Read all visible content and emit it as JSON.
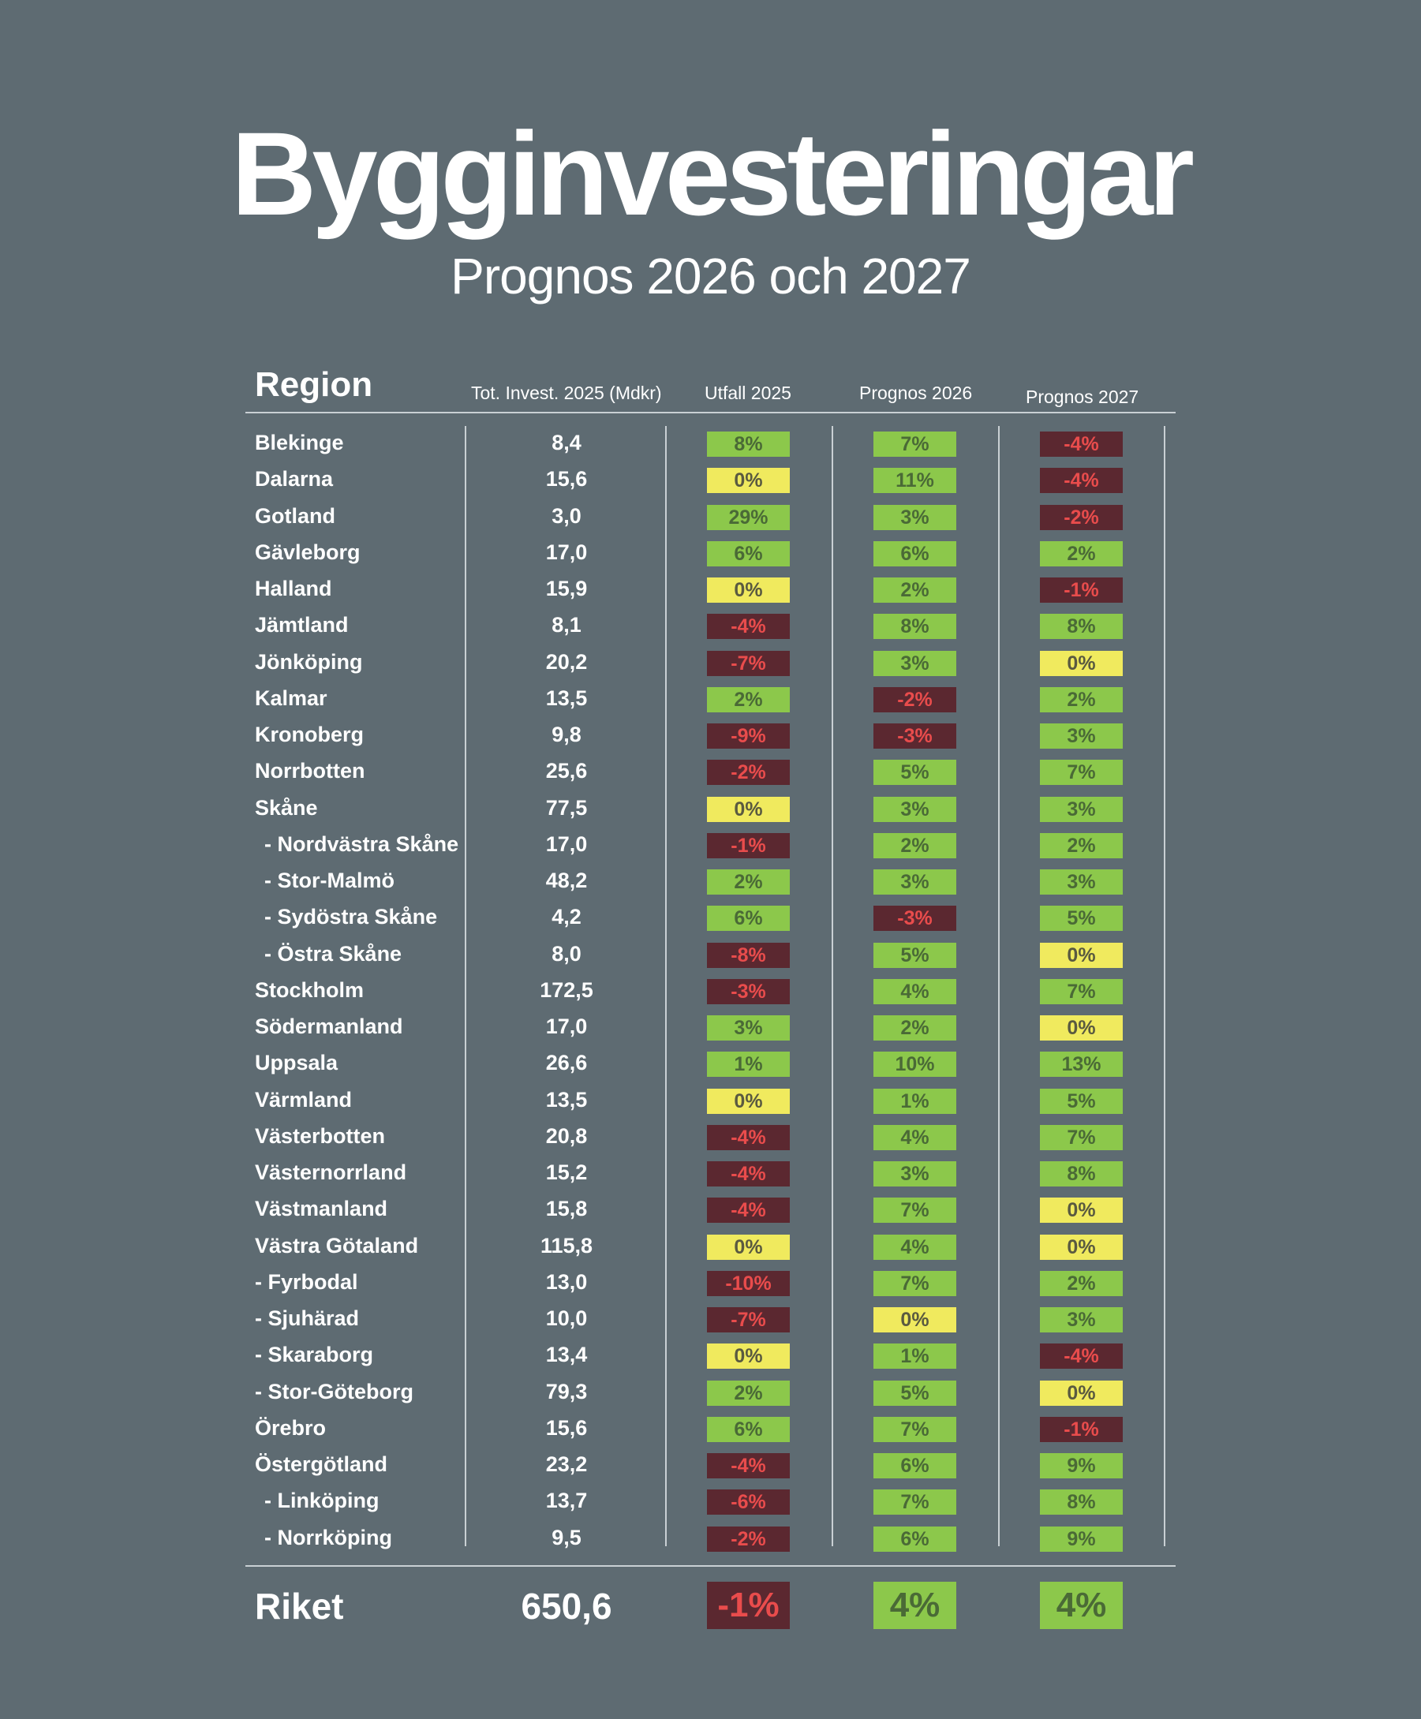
{
  "title": "Bygginvesteringar",
  "subtitle": "Prognos 2026 och 2027",
  "colors": {
    "background": "#5e6b72",
    "positive": "#8cc84b",
    "zero": "#f0ea5e",
    "negative": "#5b2830",
    "negative_text": "#e94c4c"
  },
  "headers": {
    "region": "Region",
    "tot": "Tot. Invest. 2025 (Mdkr)",
    "utfall": "Utfall 2025",
    "p2026": "Prognos 2026",
    "p2027": "Prognos 2027"
  },
  "chart_data": {
    "type": "table",
    "title": "Bygginvesteringar",
    "subtitle": "Prognos 2026 och 2027",
    "columns": [
      "Region",
      "Tot. Invest. 2025 (Mdkr)",
      "Utfall 2025",
      "Prognos 2026",
      "Prognos 2027"
    ],
    "rows": [
      {
        "region": "Blekinge",
        "level": 0,
        "tot": "8,4",
        "utfall": "8%",
        "p2026": "7%",
        "p2027": "-4%"
      },
      {
        "region": "Dalarna",
        "level": 0,
        "tot": "15,6",
        "utfall": "0%",
        "p2026": "11%",
        "p2027": "-4%"
      },
      {
        "region": "Gotland",
        "level": 0,
        "tot": "3,0",
        "utfall": "29%",
        "p2026": "3%",
        "p2027": "-2%"
      },
      {
        "region": "Gävleborg",
        "level": 0,
        "tot": "17,0",
        "utfall": "6%",
        "p2026": "6%",
        "p2027": "2%"
      },
      {
        "region": "Halland",
        "level": 0,
        "tot": "15,9",
        "utfall": "0%",
        "p2026": "2%",
        "p2027": "-1%"
      },
      {
        "region": "Jämtland",
        "level": 0,
        "tot": "8,1",
        "utfall": "-4%",
        "p2026": "8%",
        "p2027": "8%"
      },
      {
        "region": "Jönköping",
        "level": 0,
        "tot": "20,2",
        "utfall": "-7%",
        "p2026": "3%",
        "p2027": "0%"
      },
      {
        "region": "Kalmar",
        "level": 0,
        "tot": "13,5",
        "utfall": "2%",
        "p2026": "-2%",
        "p2027": "2%"
      },
      {
        "region": "Kronoberg",
        "level": 0,
        "tot": "9,8",
        "utfall": "-9%",
        "p2026": "-3%",
        "p2027": "3%"
      },
      {
        "region": "Norrbotten",
        "level": 0,
        "tot": "25,6",
        "utfall": "-2%",
        "p2026": "5%",
        "p2027": "7%"
      },
      {
        "region": "Skåne",
        "level": 0,
        "tot": "77,5",
        "utfall": "0%",
        "p2026": "3%",
        "p2027": "3%"
      },
      {
        "region": "- Nordvästra Skåne",
        "level": 1,
        "tot": "17,0",
        "utfall": "-1%",
        "p2026": "2%",
        "p2027": "2%"
      },
      {
        "region": "- Stor-Malmö",
        "level": 1,
        "tot": "48,2",
        "utfall": "2%",
        "p2026": "3%",
        "p2027": "3%"
      },
      {
        "region": "- Sydöstra Skåne",
        "level": 1,
        "tot": "4,2",
        "utfall": "6%",
        "p2026": "-3%",
        "p2027": "5%"
      },
      {
        "region": "- Östra Skåne",
        "level": 1,
        "tot": "8,0",
        "utfall": "-8%",
        "p2026": "5%",
        "p2027": "0%"
      },
      {
        "region": "Stockholm",
        "level": 0,
        "tot": "172,5",
        "utfall": "-3%",
        "p2026": "4%",
        "p2027": "7%"
      },
      {
        "region": "Södermanland",
        "level": 0,
        "tot": "17,0",
        "utfall": "3%",
        "p2026": "2%",
        "p2027": "0%"
      },
      {
        "region": "Uppsala",
        "level": 0,
        "tot": "26,6",
        "utfall": "1%",
        "p2026": "10%",
        "p2027": "13%"
      },
      {
        "region": "Värmland",
        "level": 0,
        "tot": "13,5",
        "utfall": "0%",
        "p2026": "1%",
        "p2027": "5%"
      },
      {
        "region": "Västerbotten",
        "level": 0,
        "tot": "20,8",
        "utfall": "-4%",
        "p2026": "4%",
        "p2027": "7%"
      },
      {
        "region": "Västernorrland",
        "level": 0,
        "tot": "15,2",
        "utfall": "-4%",
        "p2026": "3%",
        "p2027": "8%"
      },
      {
        "region": "Västmanland",
        "level": 0,
        "tot": "15,8",
        "utfall": "-4%",
        "p2026": "7%",
        "p2027": "0%"
      },
      {
        "region": "Västra Götaland",
        "level": 0,
        "tot": "115,8",
        "utfall": "0%",
        "p2026": "4%",
        "p2027": "0%"
      },
      {
        "region": "- Fyrbodal",
        "level": 2,
        "tot": "13,0",
        "utfall": "-10%",
        "p2026": "7%",
        "p2027": "2%"
      },
      {
        "region": "- Sjuhärad",
        "level": 2,
        "tot": "10,0",
        "utfall": "-7%",
        "p2026": "0%",
        "p2027": "3%"
      },
      {
        "region": "- Skaraborg",
        "level": 2,
        "tot": "13,4",
        "utfall": "0%",
        "p2026": "1%",
        "p2027": "-4%"
      },
      {
        "region": "- Stor-Göteborg",
        "level": 2,
        "tot": "79,3",
        "utfall": "2%",
        "p2026": "5%",
        "p2027": "0%"
      },
      {
        "region": "Örebro",
        "level": 0,
        "tot": "15,6",
        "utfall": "6%",
        "p2026": "7%",
        "p2027": "-1%"
      },
      {
        "region": "Östergötland",
        "level": 0,
        "tot": "23,2",
        "utfall": "-4%",
        "p2026": "6%",
        "p2027": "9%"
      },
      {
        "region": "- Linköping",
        "level": 1,
        "tot": "13,7",
        "utfall": "-6%",
        "p2026": "7%",
        "p2027": "8%"
      },
      {
        "region": "- Norrköping",
        "level": 1,
        "tot": "9,5",
        "utfall": "-2%",
        "p2026": "6%",
        "p2027": "9%"
      }
    ],
    "total": {
      "region": "Riket",
      "tot": "650,6",
      "utfall": "-1%",
      "p2026": "4%",
      "p2027": "4%"
    }
  }
}
